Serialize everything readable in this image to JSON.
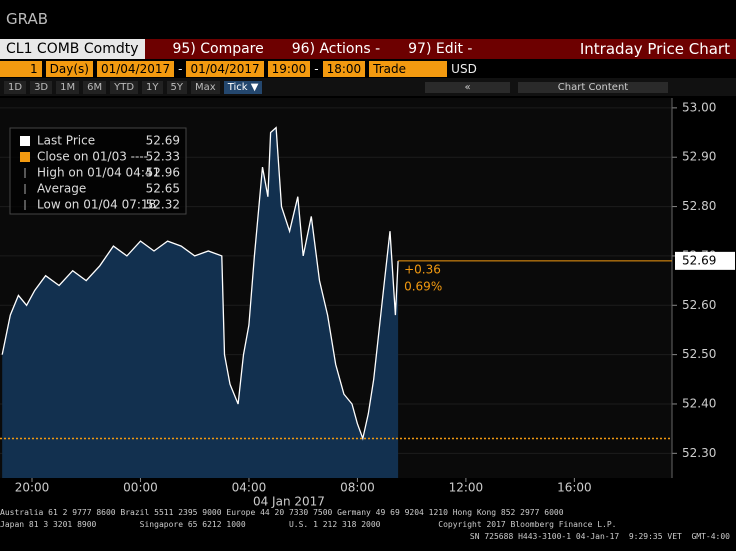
{
  "header": {
    "title": "GRAB"
  },
  "toolbar": {
    "ticker": "CL1 COMB Comdty",
    "menus": [
      "95) Compare",
      "96) Actions -",
      "97) Edit -"
    ],
    "title": "Intraday Price Chart"
  },
  "settings": [
    "1",
    "Day(s)",
    "01/04/2017",
    "-",
    "01/04/2017",
    "19:00",
    "-",
    "18:00",
    "Trade",
    "USD"
  ],
  "ranges": [
    "1D",
    "3D",
    "1M",
    "6M",
    "YTD",
    "1Y",
    "5Y",
    "Max",
    "Tick ▼"
  ],
  "nav": {
    "back": "«",
    "content": "Chart Content"
  },
  "chart_data": {
    "type": "area",
    "legend": [
      {
        "name": "Last Price",
        "value": 52.69,
        "color": "#ffffff"
      },
      {
        "name": "Close on 01/03 ----",
        "value": 52.33,
        "color": "#f39a10"
      },
      {
        "name": "High on 01/04 04:41",
        "value": 52.96
      },
      {
        "name": "Average",
        "value": 52.65
      },
      {
        "name": "Low on 01/04 07:18",
        "value": 52.32
      }
    ],
    "annotations": [
      "+0.36",
      "0.69%"
    ],
    "series": [
      {
        "name": "Last Price",
        "color": "#ffffff",
        "fill": "#12304f",
        "x": [
          18.9,
          19.2,
          19.5,
          19.8,
          20.1,
          20.5,
          21.0,
          21.5,
          22.0,
          22.5,
          23.0,
          23.5,
          24.0,
          24.5,
          25.0,
          25.5,
          26.0,
          26.5,
          27.0,
          27.1,
          27.3,
          27.6,
          27.8,
          28.0,
          28.2,
          28.5,
          28.7,
          28.8,
          29.0,
          29.2,
          29.5,
          29.8,
          30.0,
          30.3,
          30.6,
          30.9,
          31.2,
          31.5,
          31.8,
          32.0,
          32.2,
          32.4,
          32.6,
          32.8,
          33.0,
          33.2,
          33.4,
          33.5
        ],
        "values": [
          52.5,
          52.58,
          52.62,
          52.6,
          52.63,
          52.66,
          52.64,
          52.67,
          52.65,
          52.68,
          52.72,
          52.7,
          52.73,
          52.71,
          52.73,
          52.72,
          52.7,
          52.71,
          52.7,
          52.5,
          52.44,
          52.4,
          52.5,
          52.56,
          52.7,
          52.88,
          52.82,
          52.95,
          52.96,
          52.8,
          52.75,
          52.82,
          52.7,
          52.78,
          52.65,
          52.58,
          52.48,
          52.42,
          52.4,
          52.36,
          52.33,
          52.38,
          52.45,
          52.55,
          52.65,
          52.75,
          52.58,
          52.69
        ]
      }
    ],
    "xlim": [
      18.82,
      43.6
    ],
    "xticks": [
      {
        "value": 20,
        "label": "20:00"
      },
      {
        "value": 24,
        "label": "00:00"
      },
      {
        "value": 28,
        "label": "04:00"
      },
      {
        "value": 32,
        "label": "08:00"
      },
      {
        "value": 36,
        "label": "12:00"
      },
      {
        "value": 40,
        "label": "16:00"
      }
    ],
    "xlabel": "04 Jan 2017",
    "ylim": [
      52.25,
      53.02
    ],
    "yticks": [
      {
        "value": 52.3,
        "label": "52.30"
      },
      {
        "value": 52.4,
        "label": "52.40"
      },
      {
        "value": 52.5,
        "label": "52.50"
      },
      {
        "value": 52.6,
        "label": "52.60"
      },
      {
        "value": 52.7,
        "label": "52.70"
      },
      {
        "value": 52.8,
        "label": "52.80"
      },
      {
        "value": 52.9,
        "label": "52.90"
      },
      {
        "value": 53.0,
        "label": "53.00"
      }
    ],
    "grid": true
  },
  "footer": [
    "Australia 61 2 9777 8600 Brazil 5511 2395 9000 Europe 44 20 7330 7500 Germany 49 69 9204 1210 Hong Kong 852 2977 6000",
    "Japan 81 3 3201 8900         Singapore 65 6212 1000         U.S. 1 212 318 2000            Copyright 2017 Bloomberg Finance L.P.",
    "SN 725688 H443-3100-1 04-Jan-17  9:29:35 VET  GMT-4:00"
  ]
}
